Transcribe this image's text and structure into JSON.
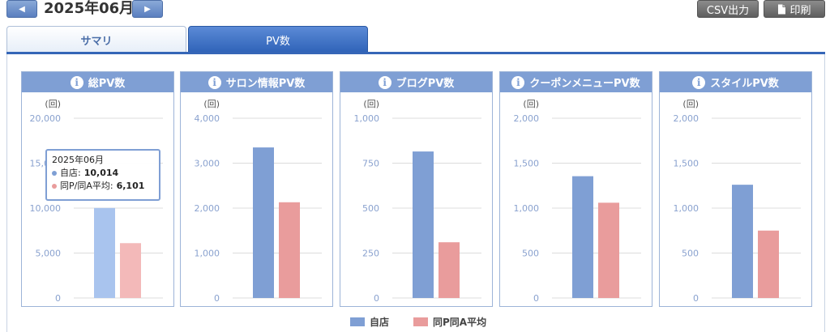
{
  "header": {
    "prev_label": "◀",
    "next_label": "▶",
    "month": "2025年06月",
    "csv_label": "CSV出力",
    "print_label": "印刷",
    "print_icon": "document-icon"
  },
  "tabs": [
    {
      "label": "サマリ",
      "active": false
    },
    {
      "label": "PV数",
      "active": true
    }
  ],
  "colors": {
    "self": "#7f9fd4",
    "avg": "#e99c9c",
    "accent": "#3566b7"
  },
  "unit_label": "(回)",
  "legend": {
    "self": "自店",
    "avg": "同P同A平均"
  },
  "tooltip": {
    "title": "2025年06月",
    "self_label": "自店:",
    "self_value": "10,014",
    "avg_label": "同P/同A平均:",
    "avg_value": "6,101"
  },
  "chart_data": [
    {
      "type": "bar",
      "title": "総PV数",
      "ylabel": "(回)",
      "ylim": [
        0,
        20000
      ],
      "ticks": [
        "0",
        "5,000",
        "10,000",
        "15,000",
        "20,000"
      ],
      "tick_values": [
        0,
        5000,
        10000,
        15000,
        20000
      ],
      "series": [
        {
          "name": "自店",
          "values": [
            10014
          ]
        },
        {
          "name": "同P同A平均",
          "values": [
            6101
          ]
        }
      ],
      "highlighted": true
    },
    {
      "type": "bar",
      "title": "サロン情報PV数",
      "ylabel": "(回)",
      "ylim": [
        0,
        4000
      ],
      "ticks": [
        "0",
        "1,000",
        "2,000",
        "3,000",
        "4,000"
      ],
      "tick_values": [
        0,
        1000,
        2000,
        3000,
        4000
      ],
      "series": [
        {
          "name": "自店",
          "values": [
            3350
          ]
        },
        {
          "name": "同P同A平均",
          "values": [
            2130
          ]
        }
      ]
    },
    {
      "type": "bar",
      "title": "ブログPV数",
      "ylabel": "(回)",
      "ylim": [
        0,
        1000
      ],
      "ticks": [
        "0",
        "250",
        "500",
        "750",
        "1,000"
      ],
      "tick_values": [
        0,
        250,
        500,
        750,
        1000
      ],
      "series": [
        {
          "name": "自店",
          "values": [
            815
          ]
        },
        {
          "name": "同P同A平均",
          "values": [
            310
          ]
        }
      ]
    },
    {
      "type": "bar",
      "title": "クーポンメニューPV数",
      "ylabel": "(回)",
      "ylim": [
        0,
        2000
      ],
      "ticks": [
        "0",
        "500",
        "1,000",
        "1,500",
        "2,000"
      ],
      "tick_values": [
        0,
        500,
        1000,
        1500,
        2000
      ],
      "series": [
        {
          "name": "自店",
          "values": [
            1355
          ]
        },
        {
          "name": "同P同A平均",
          "values": [
            1060
          ]
        }
      ]
    },
    {
      "type": "bar",
      "title": "スタイルPV数",
      "ylabel": "(回)",
      "ylim": [
        0,
        2000
      ],
      "ticks": [
        "0",
        "500",
        "1,000",
        "1,500",
        "2,000"
      ],
      "tick_values": [
        0,
        500,
        1000,
        1500,
        2000
      ],
      "series": [
        {
          "name": "自店",
          "values": [
            1260
          ]
        },
        {
          "name": "同P同A平均",
          "values": [
            750
          ]
        }
      ]
    }
  ]
}
